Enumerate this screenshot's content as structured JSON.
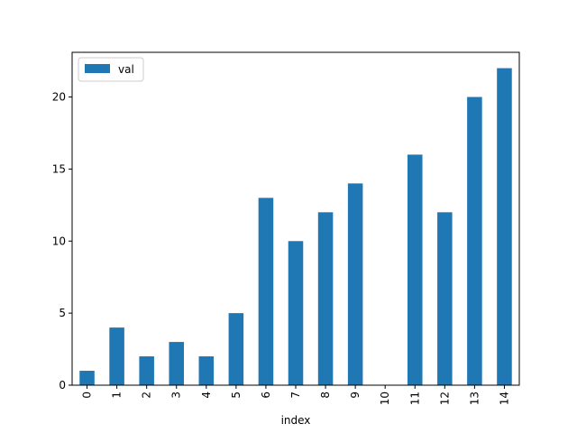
{
  "chart_data": {
    "type": "bar",
    "categories": [
      "0",
      "1",
      "2",
      "3",
      "4",
      "5",
      "6",
      "7",
      "8",
      "9",
      "10",
      "11",
      "12",
      "13",
      "14"
    ],
    "series": [
      {
        "name": "val",
        "values": [
          1,
          4,
          2,
          3,
          2,
          5,
          13,
          10,
          12,
          14,
          0,
          16,
          12,
          20,
          22
        ],
        "color": "#1f77b4"
      }
    ],
    "title": "",
    "xlabel": "index",
    "ylabel": "",
    "ylim": [
      0,
      23.1
    ],
    "yticks": [
      0,
      5,
      10,
      15,
      20
    ],
    "xtick_rotation": "vertical",
    "grid": false,
    "legend": {
      "position": "top-left",
      "entries": [
        "val"
      ]
    }
  }
}
